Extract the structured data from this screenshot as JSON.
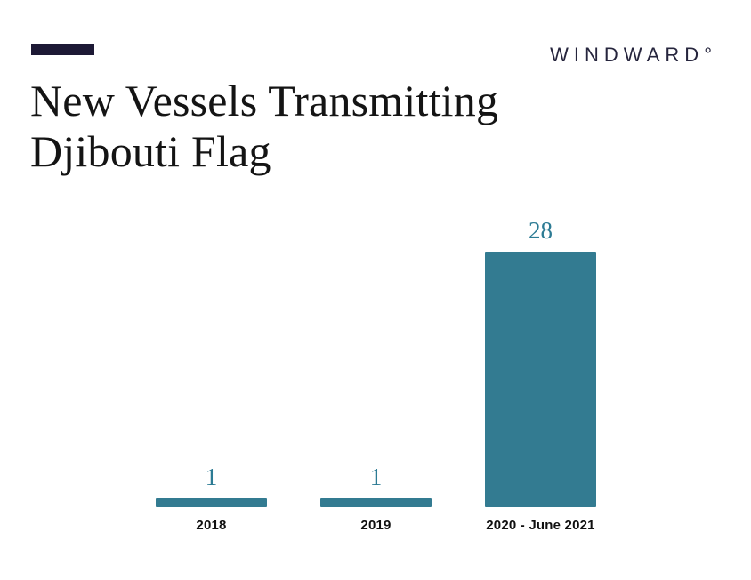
{
  "header": {
    "logo": "WINDWARD°"
  },
  "title": {
    "line1": "New Vessels Transmitting",
    "line2": "Djibouti Flag"
  },
  "colors": {
    "bar": "#337b91",
    "value_label": "#2c7b94",
    "navy_accent": "#1d1935",
    "logo": "#26253d",
    "background": "#ffffff"
  },
  "chart_data": {
    "type": "bar",
    "title": "New Vessels Transmitting Djibouti Flag",
    "categories": [
      "2018",
      "2019",
      "2020 - June 2021"
    ],
    "values": [
      1,
      1,
      28
    ],
    "xlabel": "",
    "ylabel": "",
    "ylim": [
      0,
      28
    ],
    "grid": false,
    "legend": false,
    "value_labels_shown": true,
    "bar_color": "#337b91"
  }
}
